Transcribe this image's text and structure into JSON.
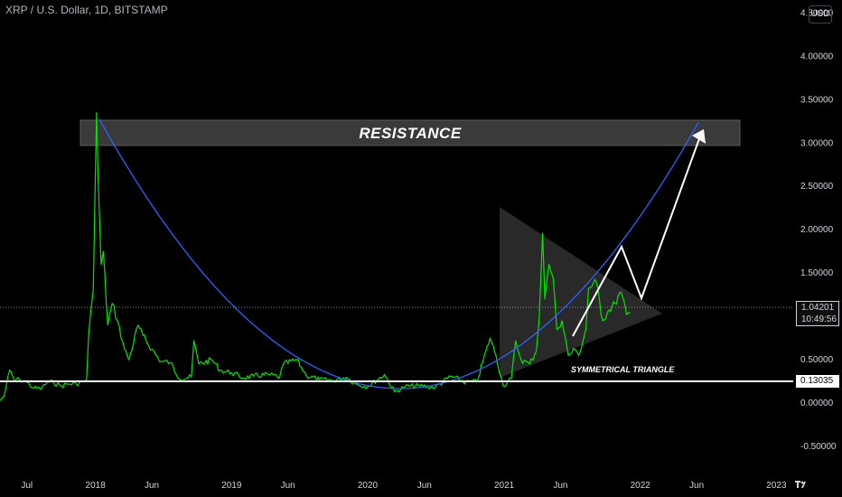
{
  "header": {
    "symbol_title": "XRP / U.S. Dollar, 1D, BITSTAMP",
    "currency": "USD"
  },
  "annotations": {
    "resistance": "RESISTANCE",
    "pattern": "SYMMETRICAL TRIANGLE"
  },
  "price_scale": {
    "current_price": "1.04201",
    "countdown": "10:49:56",
    "support_price": "0.13035"
  },
  "colors": {
    "price": "#00e600",
    "curve": "#2962ff",
    "lines": "#ffffff",
    "bg": "#000000"
  },
  "chart_data": {
    "type": "line",
    "title": "XRP / U.S. Dollar, 1D, BITSTAMP",
    "y_ticks": [
      4.5,
      4.0,
      3.5,
      3.0,
      2.5,
      2.0,
      1.5,
      1.0,
      0.5,
      0.0,
      -0.5
    ],
    "y_tick_labels": [
      "4.50000",
      "4.00000",
      "3.50000",
      "3.00000",
      "2.50000",
      "2.00000",
      "1.50000",
      "1.00000",
      "0.50000",
      "0.00000",
      "-0.50000"
    ],
    "x_ticks": [
      {
        "date": "2017-07-01",
        "label": "Jul"
      },
      {
        "date": "2018-01-01",
        "label": "2018"
      },
      {
        "date": "2018-06-01",
        "label": "Jun"
      },
      {
        "date": "2019-01-01",
        "label": "2019"
      },
      {
        "date": "2019-06-01",
        "label": "Jun"
      },
      {
        "date": "2020-01-01",
        "label": "2020"
      },
      {
        "date": "2020-06-01",
        "label": "Jun"
      },
      {
        "date": "2021-01-01",
        "label": "2021"
      },
      {
        "date": "2021-06-01",
        "label": "Jun"
      },
      {
        "date": "2022-01-01",
        "label": "2022"
      },
      {
        "date": "2022-06-01",
        "label": "Jun"
      },
      {
        "date": "2023-01-01",
        "label": "2023"
      }
    ],
    "ylim": [
      -0.75,
      4.65
    ],
    "xlim": [
      "2017-04-20",
      "2023-02-15"
    ],
    "series": [
      {
        "values": [
          {
            "x": "2017-04-20",
            "y": 0.03
          },
          {
            "x": "2017-05-01",
            "y": 0.08
          },
          {
            "x": "2017-05-16",
            "y": 0.38
          },
          {
            "x": "2017-05-28",
            "y": 0.27
          },
          {
            "x": "2017-06-12",
            "y": 0.27
          },
          {
            "x": "2017-07-01",
            "y": 0.24
          },
          {
            "x": "2017-07-20",
            "y": 0.17
          },
          {
            "x": "2017-08-10",
            "y": 0.17
          },
          {
            "x": "2017-08-25",
            "y": 0.24
          },
          {
            "x": "2017-09-10",
            "y": 0.24
          },
          {
            "x": "2017-10-01",
            "y": 0.2
          },
          {
            "x": "2017-10-20",
            "y": 0.22
          },
          {
            "x": "2017-11-10",
            "y": 0.22
          },
          {
            "x": "2017-11-28",
            "y": 0.25
          },
          {
            "x": "2017-12-08",
            "y": 0.27
          },
          {
            "x": "2017-12-14",
            "y": 0.8
          },
          {
            "x": "2017-12-20",
            "y": 1.08
          },
          {
            "x": "2017-12-26",
            "y": 1.3
          },
          {
            "x": "2017-12-30",
            "y": 2.2
          },
          {
            "x": "2018-01-04",
            "y": 3.35
          },
          {
            "x": "2018-01-08",
            "y": 2.6
          },
          {
            "x": "2018-01-16",
            "y": 1.6
          },
          {
            "x": "2018-01-22",
            "y": 1.75
          },
          {
            "x": "2018-02-03",
            "y": 0.9
          },
          {
            "x": "2018-02-15",
            "y": 1.15
          },
          {
            "x": "2018-03-01",
            "y": 0.95
          },
          {
            "x": "2018-03-20",
            "y": 0.62
          },
          {
            "x": "2018-04-01",
            "y": 0.5
          },
          {
            "x": "2018-04-25",
            "y": 0.9
          },
          {
            "x": "2018-05-08",
            "y": 0.78
          },
          {
            "x": "2018-06-01",
            "y": 0.62
          },
          {
            "x": "2018-06-25",
            "y": 0.48
          },
          {
            "x": "2018-07-20",
            "y": 0.47
          },
          {
            "x": "2018-08-15",
            "y": 0.28
          },
          {
            "x": "2018-09-15",
            "y": 0.3
          },
          {
            "x": "2018-09-22",
            "y": 0.72
          },
          {
            "x": "2018-10-05",
            "y": 0.45
          },
          {
            "x": "2018-11-10",
            "y": 0.5
          },
          {
            "x": "2018-12-01",
            "y": 0.38
          },
          {
            "x": "2019-01-01",
            "y": 0.35
          },
          {
            "x": "2019-02-01",
            "y": 0.29
          },
          {
            "x": "2019-03-01",
            "y": 0.31
          },
          {
            "x": "2019-04-10",
            "y": 0.33
          },
          {
            "x": "2019-05-10",
            "y": 0.3
          },
          {
            "x": "2019-05-20",
            "y": 0.45
          },
          {
            "x": "2019-06-25",
            "y": 0.5
          },
          {
            "x": "2019-07-20",
            "y": 0.32
          },
          {
            "x": "2019-08-25",
            "y": 0.27
          },
          {
            "x": "2019-10-01",
            "y": 0.26
          },
          {
            "x": "2019-11-05",
            "y": 0.3
          },
          {
            "x": "2019-12-01",
            "y": 0.22
          },
          {
            "x": "2020-01-01",
            "y": 0.19
          },
          {
            "x": "2020-02-15",
            "y": 0.33
          },
          {
            "x": "2020-03-13",
            "y": 0.13
          },
          {
            "x": "2020-04-10",
            "y": 0.19
          },
          {
            "x": "2020-05-20",
            "y": 0.2
          },
          {
            "x": "2020-06-30",
            "y": 0.18
          },
          {
            "x": "2020-08-10",
            "y": 0.31
          },
          {
            "x": "2020-09-20",
            "y": 0.24
          },
          {
            "x": "2020-10-20",
            "y": 0.25
          },
          {
            "x": "2020-11-24",
            "y": 0.75
          },
          {
            "x": "2020-12-10",
            "y": 0.55
          },
          {
            "x": "2020-12-29",
            "y": 0.2
          },
          {
            "x": "2021-01-20",
            "y": 0.28
          },
          {
            "x": "2021-02-01",
            "y": 0.72
          },
          {
            "x": "2021-02-15",
            "y": 0.5
          },
          {
            "x": "2021-03-10",
            "y": 0.45
          },
          {
            "x": "2021-03-28",
            "y": 0.6
          },
          {
            "x": "2021-04-05",
            "y": 1.0
          },
          {
            "x": "2021-04-14",
            "y": 1.96
          },
          {
            "x": "2021-04-20",
            "y": 1.2
          },
          {
            "x": "2021-05-01",
            "y": 1.6
          },
          {
            "x": "2021-05-12",
            "y": 1.45
          },
          {
            "x": "2021-05-22",
            "y": 0.85
          },
          {
            "x": "2021-06-05",
            "y": 0.95
          },
          {
            "x": "2021-06-22",
            "y": 0.55
          },
          {
            "x": "2021-07-10",
            "y": 0.62
          },
          {
            "x": "2021-07-20",
            "y": 0.55
          },
          {
            "x": "2021-08-08",
            "y": 0.85
          },
          {
            "x": "2021-08-15",
            "y": 1.32
          },
          {
            "x": "2021-09-05",
            "y": 1.4
          },
          {
            "x": "2021-09-22",
            "y": 0.95
          },
          {
            "x": "2021-10-05",
            "y": 1.05
          },
          {
            "x": "2021-10-25",
            "y": 1.15
          },
          {
            "x": "2021-11-10",
            "y": 1.28
          },
          {
            "x": "2021-11-25",
            "y": 1.02
          },
          {
            "x": "2021-12-05",
            "y": 1.04
          }
        ]
      }
    ]
  }
}
